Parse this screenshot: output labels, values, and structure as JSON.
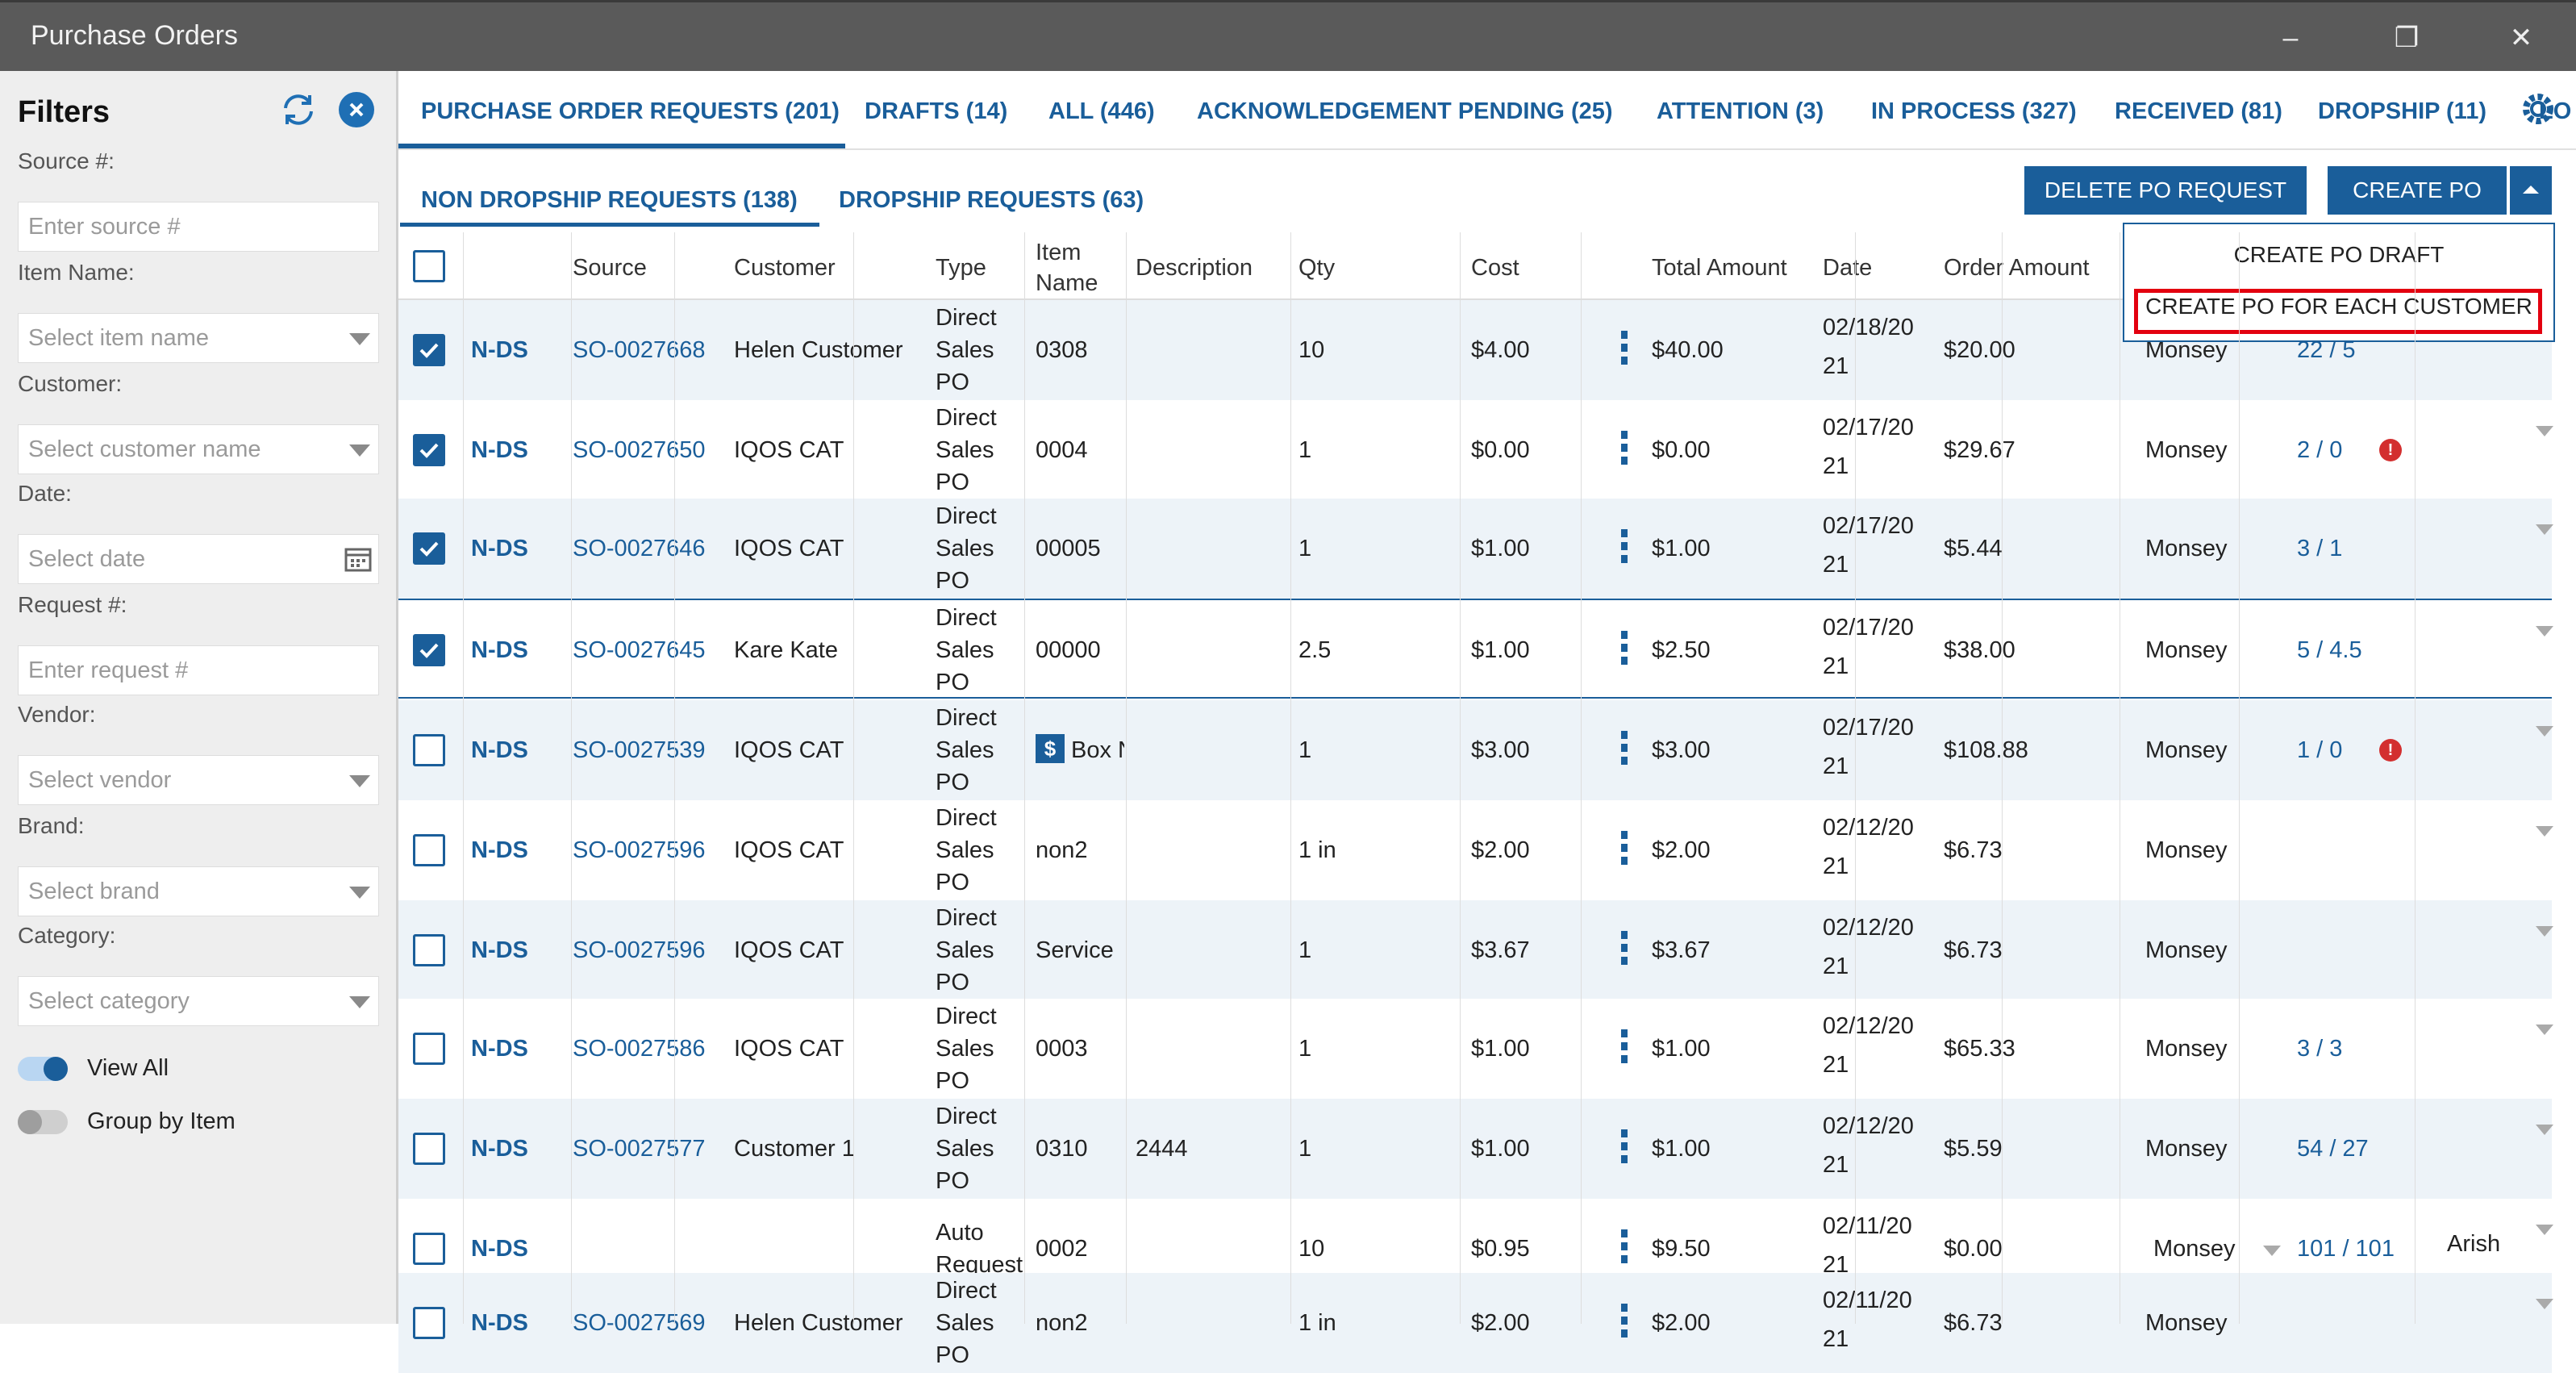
{
  "window": {
    "title": "Purchase Orders"
  },
  "filters": {
    "title": "Filters",
    "fields": [
      {
        "label": "Source #:",
        "placeholder": "Enter source #"
      },
      {
        "label": "Item Name:",
        "placeholder": "Select item name"
      },
      {
        "label": "Customer:",
        "placeholder": "Select customer name"
      },
      {
        "label": "Date:",
        "placeholder": "Select date"
      },
      {
        "label": "Request #:",
        "placeholder": "Enter request #"
      },
      {
        "label": "Vendor:",
        "placeholder": "Select vendor"
      },
      {
        "label": "Brand:",
        "placeholder": "Select brand"
      },
      {
        "label": "Category:",
        "placeholder": "Select category"
      }
    ],
    "toggles": [
      {
        "label": "View All",
        "on": true
      },
      {
        "label": "Group by Item",
        "on": false
      }
    ]
  },
  "tabs": [
    "PURCHASE ORDER REQUESTS (201)",
    "DRAFTS (14)",
    "ALL (446)",
    "ACKNOWLEDGEMENT PENDING (25)",
    "ATTENTION (3)",
    "IN PROCESS (327)",
    "RECEIVED (81)",
    "DROPSHIP (11)",
    "LO"
  ],
  "subtabs": [
    "NON DROPSHIP REQUESTS (138)",
    "DROPSHIP REQUESTS (63)"
  ],
  "buttons": {
    "delete": "DELETE PO REQUEST",
    "create": "CREATE PO"
  },
  "dropdown": [
    "CREATE PO DRAFT",
    "CREATE PO FOR EACH CUSTOMER"
  ],
  "columns": [
    "Source",
    "Customer",
    "Type",
    "Item\nName",
    "Description",
    "Qty",
    "Cost",
    "Total Amount",
    "Date",
    "Order Amount"
  ],
  "rows": [
    {
      "checked": true,
      "code": "N-DS",
      "source": "SO-0027668",
      "customer": "Helen Customer",
      "type": [
        "Direct",
        "Sales",
        "PO"
      ],
      "item": "0308",
      "desc": "",
      "qty": "10",
      "cost": "$4.00",
      "total": "$40.00",
      "date": [
        "02/18/20",
        "21"
      ],
      "order": "$20.00",
      "location": "Monsey",
      "ratio": "22 / 5",
      "alert": false,
      "extra": ""
    },
    {
      "checked": true,
      "code": "N-DS",
      "source": "SO-0027650",
      "customer": "IQOS CAT",
      "type": [
        "Direct",
        "Sales",
        "PO"
      ],
      "item": "0004",
      "desc": "",
      "qty": "1",
      "cost": "$0.00",
      "total": "$0.00",
      "date": [
        "02/17/20",
        "21"
      ],
      "order": "$29.67",
      "location": "Monsey",
      "ratio": "2 / 0",
      "alert": true,
      "extra": ""
    },
    {
      "checked": true,
      "code": "N-DS",
      "source": "SO-0027646",
      "customer": "IQOS CAT",
      "type": [
        "Direct",
        "Sales",
        "PO"
      ],
      "item": "00005",
      "desc": "",
      "qty": "1",
      "cost": "$1.00",
      "total": "$1.00",
      "date": [
        "02/17/20",
        "21"
      ],
      "order": "$5.44",
      "location": "Monsey",
      "ratio": "3 / 1",
      "alert": false,
      "extra": ""
    },
    {
      "checked": true,
      "code": "N-DS",
      "source": "SO-0027645",
      "customer": "Kare Kate",
      "type": [
        "Direct",
        "Sales",
        "PO"
      ],
      "item": "00000",
      "desc": "",
      "qty": "2.5",
      "cost": "$1.00",
      "total": "$2.50",
      "date": [
        "02/17/20",
        "21"
      ],
      "order": "$38.00",
      "location": "Monsey",
      "ratio": "5 / 4.5",
      "alert": false,
      "extra": ""
    },
    {
      "checked": false,
      "code": "N-DS",
      "source": "SO-0027539",
      "customer": "IQOS CAT",
      "type": [
        "Direct",
        "Sales",
        "PO"
      ],
      "item": "Box N",
      "desc": "",
      "qty": "1",
      "cost": "$3.00",
      "total": "$3.00",
      "date": [
        "02/17/20",
        "21"
      ],
      "order": "$108.88",
      "location": "Monsey",
      "ratio": "1 / 0",
      "alert": true,
      "extra": ""
    },
    {
      "checked": false,
      "code": "N-DS",
      "source": "SO-0027596",
      "customer": "IQOS CAT",
      "type": [
        "Direct",
        "Sales",
        "PO"
      ],
      "item": "non2",
      "desc": "",
      "qty": "1 in",
      "cost": "$2.00",
      "total": "$2.00",
      "date": [
        "02/12/20",
        "21"
      ],
      "order": "$6.73",
      "location": "Monsey",
      "ratio": "",
      "alert": false,
      "extra": ""
    },
    {
      "checked": false,
      "code": "N-DS",
      "source": "SO-0027596",
      "customer": "IQOS CAT",
      "type": [
        "Direct",
        "Sales",
        "PO"
      ],
      "item": "Service",
      "desc": "",
      "qty": "1",
      "cost": "$3.67",
      "total": "$3.67",
      "date": [
        "02/12/20",
        "21"
      ],
      "order": "$6.73",
      "location": "Monsey",
      "ratio": "",
      "alert": false,
      "extra": ""
    },
    {
      "checked": false,
      "code": "N-DS",
      "source": "SO-0027586",
      "customer": "IQOS CAT",
      "type": [
        "Direct",
        "Sales",
        "PO"
      ],
      "item": "0003",
      "desc": "",
      "qty": "1",
      "cost": "$1.00",
      "total": "$1.00",
      "date": [
        "02/12/20",
        "21"
      ],
      "order": "$65.33",
      "location": "Monsey",
      "ratio": "3 / 3",
      "alert": false,
      "extra": ""
    },
    {
      "checked": false,
      "code": "N-DS",
      "source": "SO-0027577",
      "customer": "Customer 1",
      "type": [
        "Direct",
        "Sales",
        "PO"
      ],
      "item": "0310",
      "desc": "2444",
      "qty": "1",
      "cost": "$1.00",
      "total": "$1.00",
      "date": [
        "02/12/20",
        "21"
      ],
      "order": "$5.59",
      "location": "Monsey",
      "ratio": "54 / 27",
      "alert": false,
      "extra": ""
    },
    {
      "checked": false,
      "code": "N-DS",
      "source": "",
      "customer": "",
      "type": [
        "Auto",
        "Request"
      ],
      "item": "0002",
      "desc": "",
      "qty": "10",
      "cost": "$0.95",
      "total": "$9.50",
      "date": [
        "02/11/20",
        "21"
      ],
      "order": "$0.00",
      "location": "Monsey",
      "ratio": "101 / 101",
      "alert": false,
      "extra": "Arish"
    },
    {
      "checked": false,
      "code": "N-DS",
      "source": "SO-0027569",
      "customer": "Helen Customer",
      "type": [
        "Direct",
        "Sales",
        "PO"
      ],
      "item": "non2",
      "desc": "",
      "qty": "1 in",
      "cost": "$2.00",
      "total": "$2.00",
      "date": [
        "02/11/20",
        "21"
      ],
      "order": "$6.73",
      "location": "Monsey",
      "ratio": "",
      "alert": false,
      "extra": ""
    }
  ],
  "colors": {
    "accent": "#1a5e9a",
    "highlight": "#e3000f",
    "alert": "#d32f2f"
  }
}
